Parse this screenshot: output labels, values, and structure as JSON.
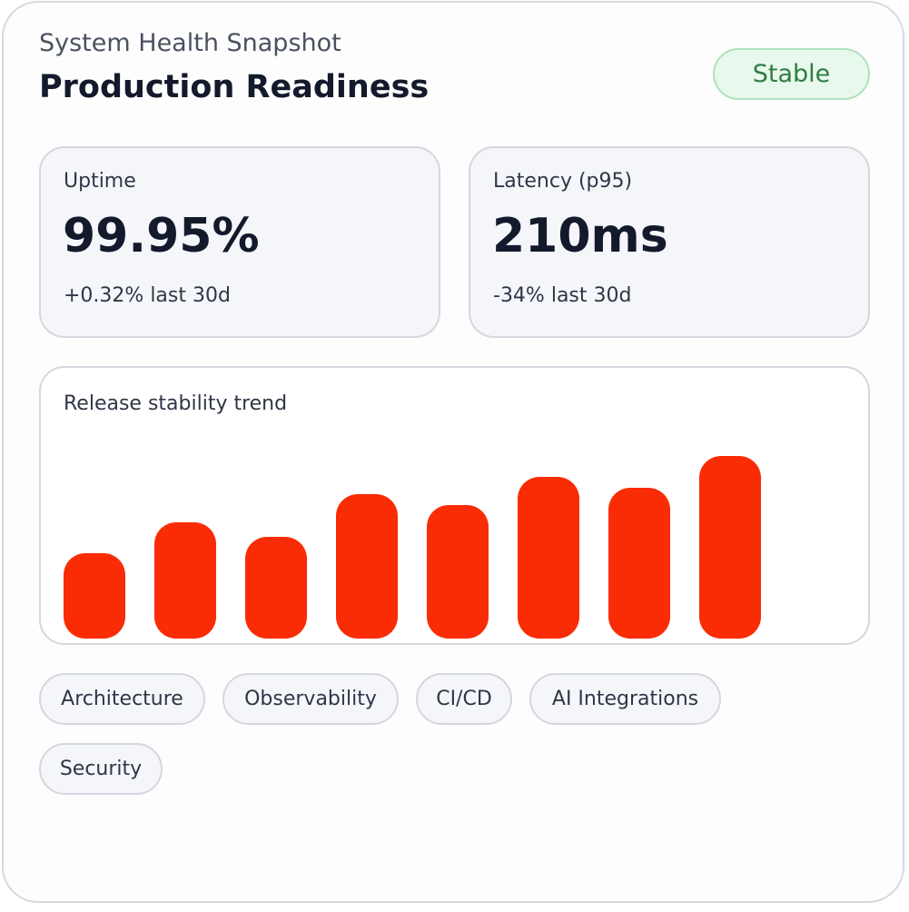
{
  "header": {
    "eyebrow": "System Health Snapshot",
    "title": "Production Readiness",
    "status": "Stable"
  },
  "metrics": [
    {
      "label": "Uptime",
      "value": "99.95%",
      "change": "+0.32% last 30d"
    },
    {
      "label": "Latency (p95)",
      "value": "210ms",
      "change": "-34% last 30d"
    }
  ],
  "chart_data": {
    "type": "bar",
    "title": "Release stability trend",
    "values": [
      94,
      128,
      112,
      159,
      147,
      178,
      166,
      201
    ],
    "ylim": [
      0,
      201
    ],
    "grid": false,
    "legend": "none",
    "colors": {
      "bar": "#f92c05"
    }
  },
  "tags": [
    "Architecture",
    "Observability",
    "CI/CD",
    "AI Integrations",
    "Security"
  ],
  "colors": {
    "status_text": "#2f7d43",
    "status_background": "#e8f8ec",
    "bar": "#f92c05"
  }
}
